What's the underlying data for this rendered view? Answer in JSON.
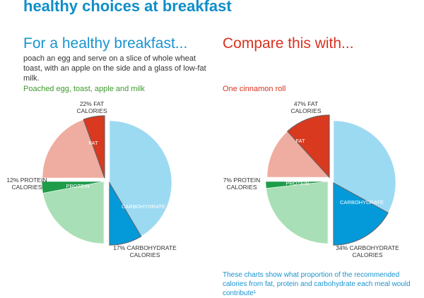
{
  "title": "healthy choices at breakfast",
  "left": {
    "heading": "For a healthy breakfast...",
    "intro": "poach an egg and serve on a slice of whole wheat toast, with an apple on the side and a glass of low-fat milk.",
    "chart_title": "Poached egg, toast, apple and milk"
  },
  "right": {
    "heading": "Compare this with...",
    "chart_title": "One cinnamon roll"
  },
  "footnote": "These charts show what proportion of the recommended calories from fat, protein and carbohydrate each meal would contribute¹",
  "colors": {
    "fat": "#d9391f",
    "fat_remaining": "#efaca0",
    "protein": "#1e9c4a",
    "protein_remaining": "#a9dfb6",
    "carbohydrate": "#049ad9",
    "carbohydrate_remaining": "#9cdaf2"
  },
  "chart_data": [
    {
      "type": "pie",
      "title": "Poached egg, toast, apple and milk",
      "categories": [
        "FAT",
        "PROTEIN",
        "CARBOHYDRATE"
      ],
      "values": [
        22,
        12,
        17
      ],
      "unit": "% of recommended calories",
      "callouts": [
        "22% FAT CALORIES",
        "12% PROTEIN CALORIES",
        "17% CARBOHYDRATE CALORIES"
      ]
    },
    {
      "type": "pie",
      "title": "One cinnamon roll",
      "categories": [
        "FAT",
        "PROTEIN",
        "CARBOHYDRATE"
      ],
      "values": [
        47,
        7,
        34
      ],
      "unit": "% of recommended calories",
      "callouts": [
        "47% FAT CALORIES",
        "7% PROTEIN CALORIES",
        "34% CARBOHYDRATE CALORIES"
      ]
    }
  ]
}
